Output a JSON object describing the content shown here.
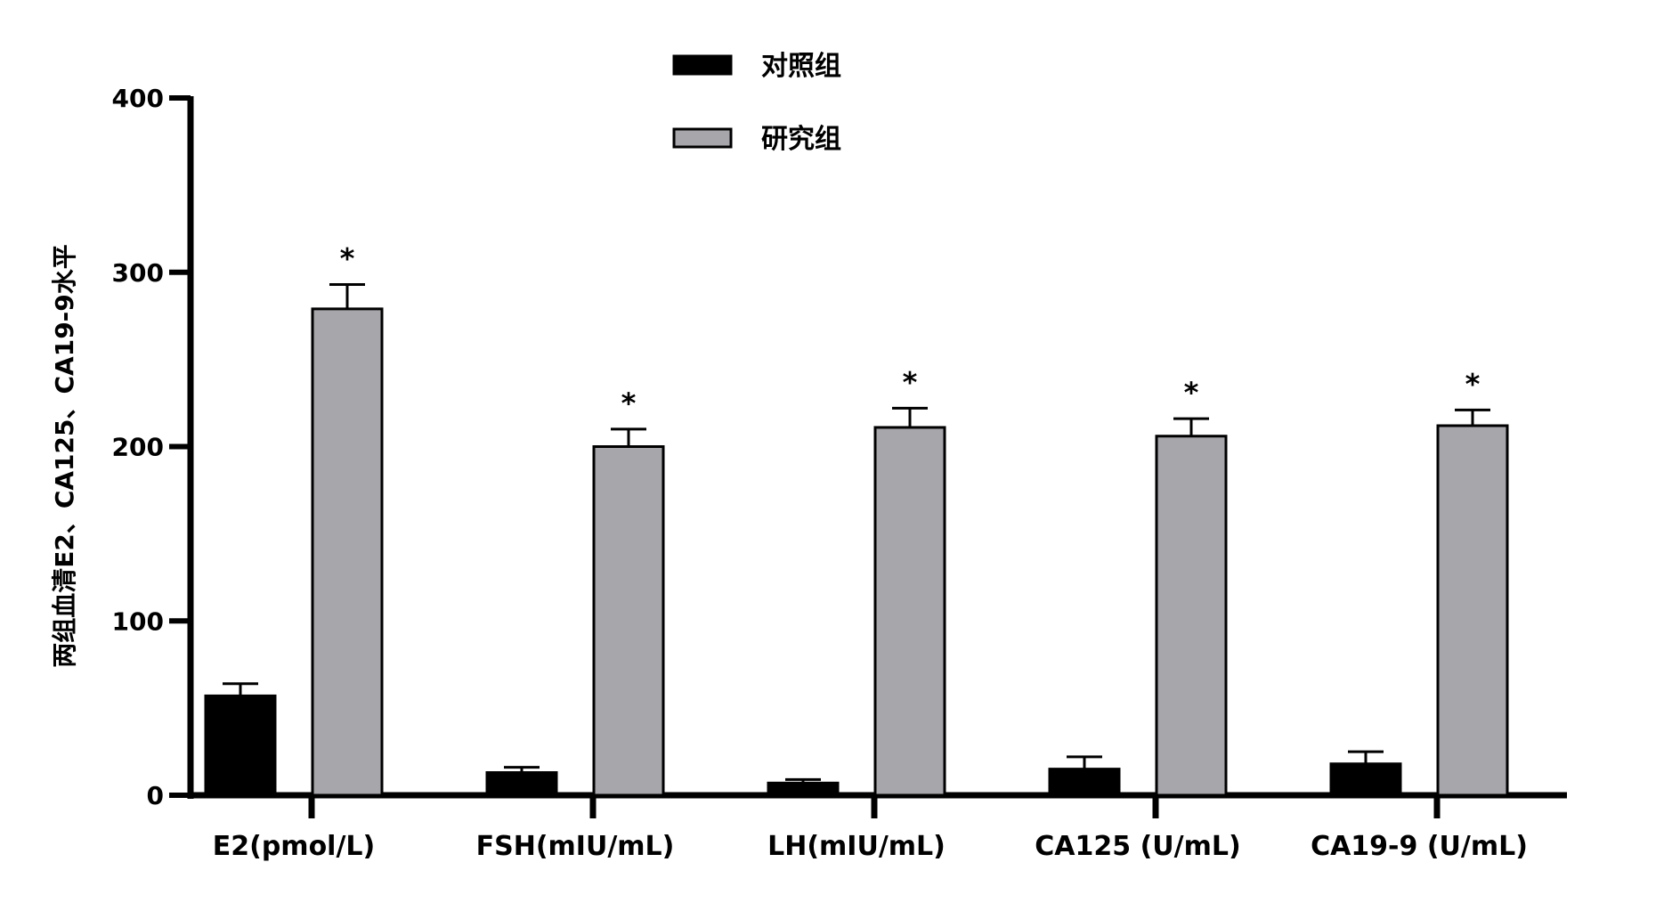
{
  "chart_data": {
    "type": "bar",
    "title": "",
    "xlabel": "",
    "ylabel": "两组血清E2、CA125、CA19-9水平",
    "ylim": [
      0,
      400
    ],
    "yticks": [
      0,
      100,
      200,
      300,
      400
    ],
    "categories": [
      "E2(pmol/L)",
      "FSH(mIU/mL)",
      "LH(mIU/mL)",
      "CA125 (U/mL)",
      "CA19-9 (U/mL)"
    ],
    "series": [
      {
        "name": "对照组",
        "color": "#000000",
        "values": [
          57,
          13,
          7,
          15,
          18
        ],
        "errors": [
          7,
          3,
          2,
          7,
          7
        ]
      },
      {
        "name": "研究组",
        "color": "#a6a6ab",
        "values": [
          279,
          200,
          211,
          206,
          212
        ],
        "errors": [
          14,
          10,
          11,
          10,
          9
        ]
      }
    ],
    "significance": [
      "*",
      "*",
      "*",
      "*",
      "*"
    ],
    "legend_position": "top-center",
    "grid": false
  }
}
